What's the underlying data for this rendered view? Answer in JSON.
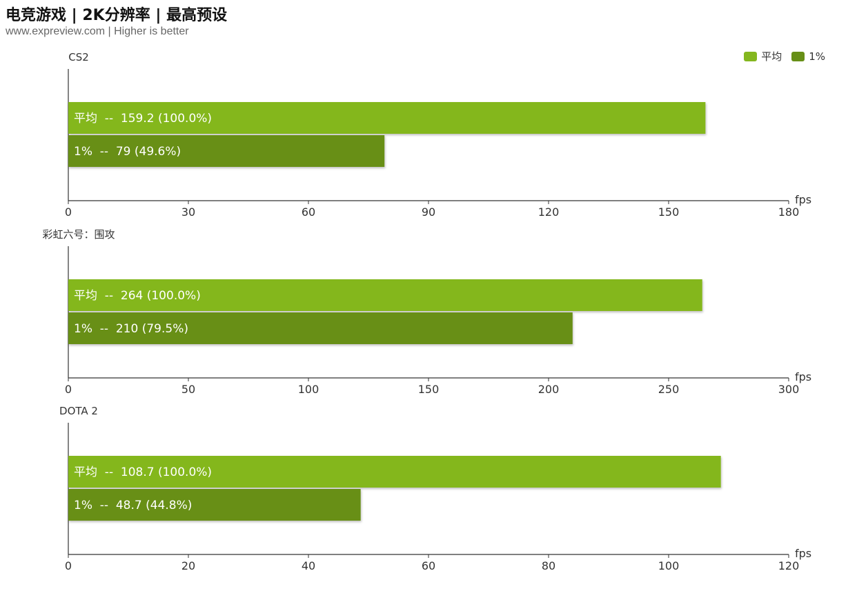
{
  "header": {
    "title": "电竞游戏 | 2K分辨率 | 最高预设",
    "subtitle": "www.expreview.com | Higher is better"
  },
  "legend": [
    {
      "label": "平均",
      "color": "#84b71f"
    },
    {
      "label": "1%",
      "color": "#678f17"
    }
  ],
  "chart_data": [
    {
      "type": "bar",
      "title": "CS2",
      "xlabel": "fps",
      "xlim": [
        0,
        180
      ],
      "ticks": [
        0,
        30,
        60,
        90,
        120,
        150,
        180
      ],
      "series": [
        {
          "name": "平均",
          "value": 159.2,
          "label": "平均  --  159.2 (100.0%)"
        },
        {
          "name": "1%",
          "value": 79,
          "label": "1%  --  79 (49.6%)"
        }
      ]
    },
    {
      "type": "bar",
      "title": "彩虹六号：围攻",
      "xlabel": "fps",
      "xlim": [
        0,
        300
      ],
      "ticks": [
        0,
        50,
        100,
        150,
        200,
        250,
        300
      ],
      "series": [
        {
          "name": "平均",
          "value": 264,
          "label": "平均  --  264 (100.0%)"
        },
        {
          "name": "1%",
          "value": 210,
          "label": "1%  --  210 (79.5%)"
        }
      ]
    },
    {
      "type": "bar",
      "title": "DOTA 2",
      "xlabel": "fps",
      "xlim": [
        0,
        120
      ],
      "ticks": [
        0,
        20,
        40,
        60,
        80,
        100,
        120
      ],
      "series": [
        {
          "name": "平均",
          "value": 108.7,
          "label": "平均  --  108.7 (100.0%)"
        },
        {
          "name": "1%",
          "value": 48.7,
          "label": "1%  --  48.7 (44.8%)"
        }
      ]
    }
  ]
}
